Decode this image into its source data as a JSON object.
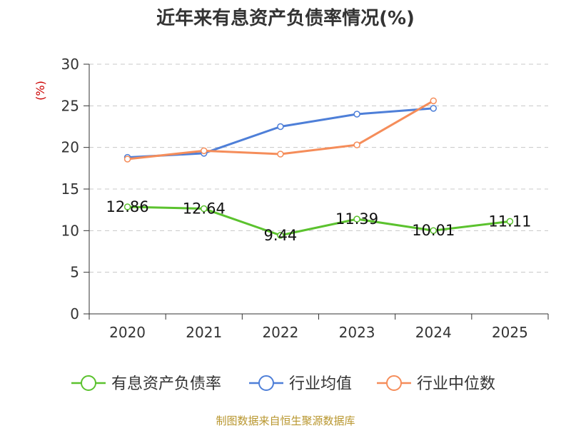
{
  "chart_data": {
    "type": "line",
    "title": "近年来有息资产负债率情况(%)",
    "ylabel": "(%)",
    "xlabel": "",
    "categories": [
      "2020",
      "2021",
      "2022",
      "2023",
      "2024",
      "2025"
    ],
    "ylim": [
      0,
      30
    ],
    "yticks": [
      0,
      5,
      10,
      15,
      20,
      25,
      30
    ],
    "grid": true,
    "legend_position": "bottom",
    "series": [
      {
        "name": "有息资产负债率",
        "color": "#5bc22e",
        "values": [
          12.86,
          12.64,
          9.44,
          11.39,
          10.01,
          11.11
        ],
        "labels": [
          "12.86",
          "12.64",
          "9.44",
          "11.39",
          "10.01",
          "11.11"
        ]
      },
      {
        "name": "行业均值",
        "color": "#4e7fd8",
        "values": [
          18.8,
          19.3,
          22.5,
          24.0,
          24.7,
          null
        ]
      },
      {
        "name": "行业中位数",
        "color": "#f58d5a",
        "values": [
          18.6,
          19.6,
          19.2,
          20.3,
          25.6,
          null
        ]
      }
    ]
  },
  "source": "制图数据来自恒生聚源数据库"
}
